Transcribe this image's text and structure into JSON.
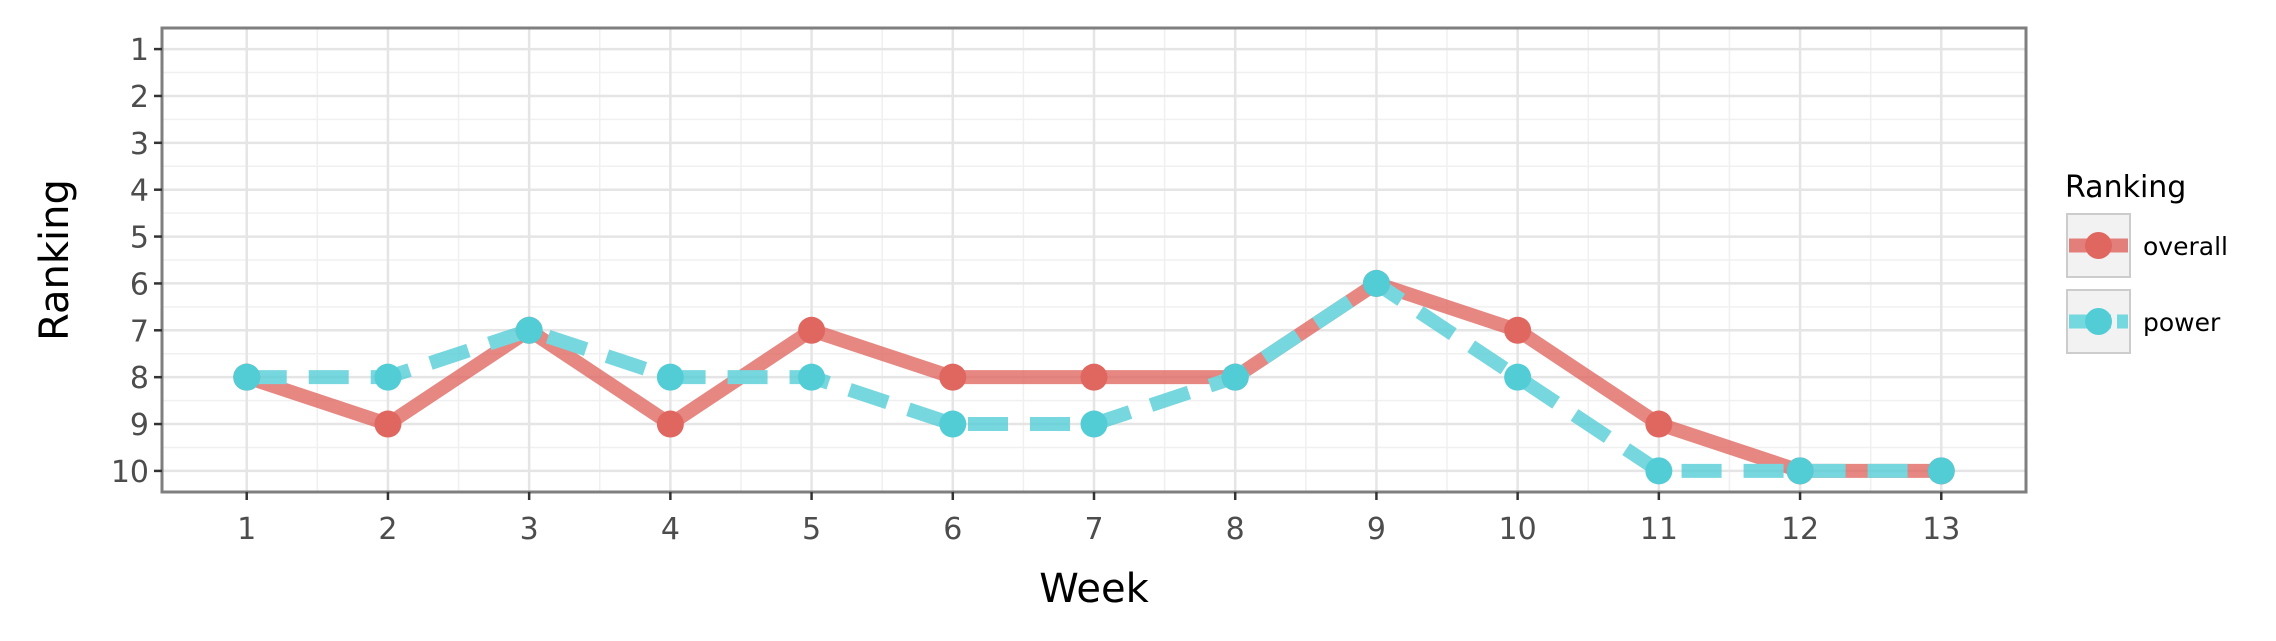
{
  "chart_data": {
    "type": "line",
    "xlabel": "Week",
    "ylabel": "Ranking",
    "x": [
      1,
      2,
      3,
      4,
      5,
      6,
      7,
      8,
      9,
      10,
      11,
      12,
      13
    ],
    "xlim": [
      0.4,
      13.6
    ],
    "ylim": [
      10.45,
      0.55
    ],
    "y_reversed": true,
    "x_ticks": [
      "1",
      "2",
      "3",
      "4",
      "5",
      "6",
      "7",
      "8",
      "9",
      "10",
      "11",
      "12",
      "13"
    ],
    "y_ticks": [
      "1",
      "2",
      "3",
      "4",
      "5",
      "6",
      "7",
      "8",
      "9",
      "10"
    ],
    "grid": true,
    "legend": {
      "title": "Ranking",
      "position": "right",
      "entries": [
        "overall",
        "power"
      ]
    },
    "series": [
      {
        "name": "overall",
        "values": [
          8,
          9,
          7,
          9,
          7,
          8,
          8,
          8,
          6,
          7,
          9,
          10,
          10
        ],
        "color": "#E06660",
        "line_color": "#E27F7B",
        "dash": "solid"
      },
      {
        "name": "power",
        "values": [
          8,
          8,
          7,
          8,
          8,
          9,
          9,
          8,
          6,
          8,
          10,
          10,
          10
        ],
        "color": "#52CDD6",
        "line_color": "#74D8DF",
        "dash": "dashed"
      }
    ]
  }
}
